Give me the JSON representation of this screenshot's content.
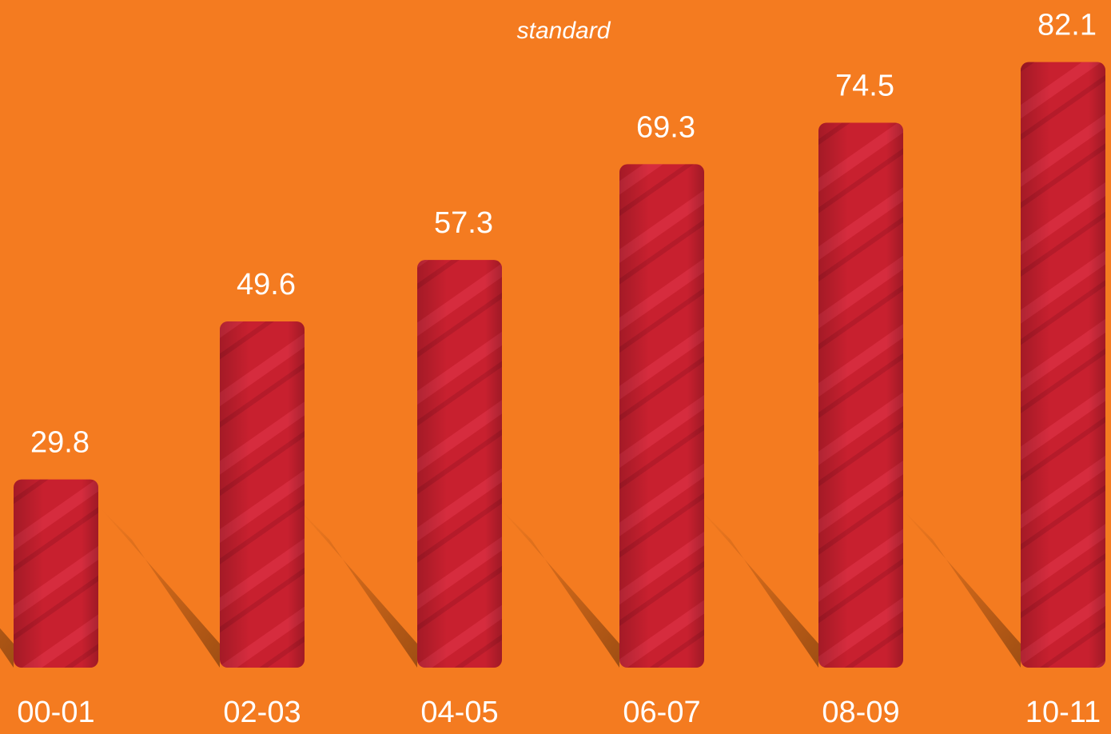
{
  "chart_data": {
    "type": "bar",
    "subtitle": "standard",
    "categories": [
      "00-01",
      "02-03",
      "04-05",
      "06-07",
      "08-09",
      "10-11"
    ],
    "values": [
      29.8,
      49.6,
      57.3,
      69.3,
      74.5,
      82.1
    ],
    "value_labels": [
      "29.8",
      "49.6",
      "57.3",
      "69.3",
      "74.5",
      "82.1"
    ],
    "color": "#c8202f"
  }
}
